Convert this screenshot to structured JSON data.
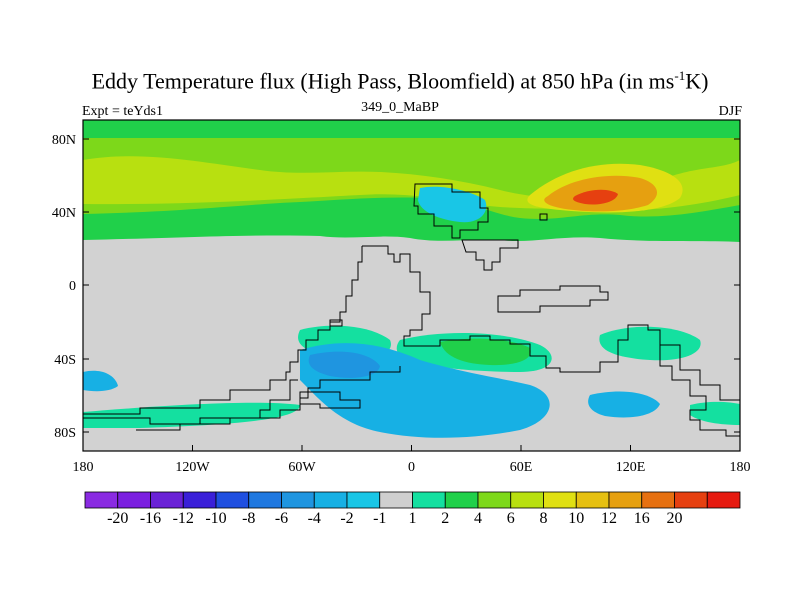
{
  "title": {
    "main": "Eddy Temperature flux (High Pass, Bloomfield) at 850 hPa (in ms",
    "sup": "-1",
    "end": "K)"
  },
  "subtitle": "349_0_MaBP",
  "left_label": "Expt = teYds1",
  "right_label": "DJF",
  "map": {
    "y_ticks": [
      "80N",
      "40N",
      "0",
      "40S",
      "80S"
    ],
    "x_ticks": [
      "180",
      "120W",
      "60W",
      "0",
      "60E",
      "120E",
      "180"
    ],
    "land_color": "#d2d2d2",
    "coast_color": "#000000"
  },
  "colorbar": {
    "colors": [
      "#8a2be2",
      "#7b1fe0",
      "#6a22d6",
      "#3a1fd8",
      "#1f4fe0",
      "#1f78e0",
      "#1f95e0",
      "#17b0e4",
      "#19c6e6",
      "#cfcfcf",
      "#14e0a0",
      "#20d04a",
      "#7dd81a",
      "#b8e010",
      "#e0e012",
      "#e6c011",
      "#e6a010",
      "#e67010",
      "#e64010",
      "#e61a10"
    ],
    "labels": [
      "-20",
      "-16",
      "-12",
      "-10",
      "-8",
      "-6",
      "-4",
      "-2",
      "-1",
      "1",
      "2",
      "4",
      "6",
      "8",
      "10",
      "12",
      "16",
      "20"
    ]
  }
}
